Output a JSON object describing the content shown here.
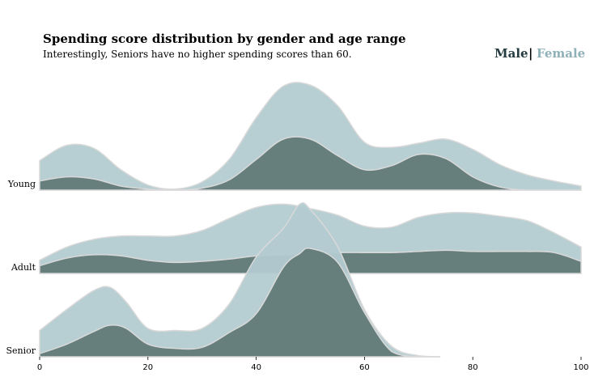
{
  "chart_data": {
    "type": "area",
    "subtype": "ridgeline-kde",
    "title": "Spending score distribution by gender and age range",
    "subtitle": "Interestingly, Seniors have no higher spending scores than 60.",
    "legend": {
      "male": "Male",
      "separator": "|",
      "female": "Female",
      "placement": "top-right"
    },
    "colors": {
      "male": "#667e7c",
      "female": "#b3cbd1",
      "outline": "#d9d9d9"
    },
    "xlim": [
      0,
      100
    ],
    "x_ticks": [
      0,
      20,
      40,
      60,
      80,
      100
    ],
    "grid": false,
    "rows": [
      {
        "name": "Young",
        "x": [
          0,
          5,
          10,
          15,
          20,
          25,
          30,
          35,
          40,
          45,
          50,
          55,
          60,
          65,
          70,
          75,
          80,
          85,
          90,
          95,
          100
        ],
        "female": [
          0.29,
          0.44,
          0.41,
          0.2,
          0.05,
          0.01,
          0.08,
          0.3,
          0.71,
          1.02,
          1.03,
          0.83,
          0.47,
          0.42,
          0.46,
          0.5,
          0.4,
          0.25,
          0.15,
          0.09,
          0.04
        ],
        "male": [
          0.09,
          0.13,
          0.11,
          0.04,
          0.01,
          0.0,
          0.02,
          0.1,
          0.3,
          0.5,
          0.5,
          0.34,
          0.2,
          0.24,
          0.35,
          0.31,
          0.13,
          0.03,
          0.0,
          0.0,
          0.0
        ]
      },
      {
        "name": "Adult",
        "x": [
          0,
          5,
          10,
          15,
          20,
          25,
          30,
          35,
          40,
          45,
          50,
          55,
          60,
          65,
          70,
          75,
          80,
          85,
          90,
          95,
          100
        ],
        "female": [
          0.12,
          0.24,
          0.31,
          0.34,
          0.34,
          0.34,
          0.39,
          0.5,
          0.6,
          0.63,
          0.59,
          0.53,
          0.43,
          0.42,
          0.51,
          0.55,
          0.55,
          0.52,
          0.48,
          0.37,
          0.24
        ],
        "male": [
          0.07,
          0.14,
          0.17,
          0.16,
          0.12,
          0.1,
          0.11,
          0.13,
          0.16,
          0.17,
          0.18,
          0.19,
          0.19,
          0.19,
          0.2,
          0.21,
          0.2,
          0.2,
          0.2,
          0.19,
          0.11
        ]
      },
      {
        "name": "Senior",
        "x": [
          0,
          5,
          10,
          13,
          16,
          20,
          25,
          30,
          35,
          40,
          45,
          48,
          50,
          55,
          60,
          65,
          70,
          74
        ],
        "female": [
          0.25,
          0.45,
          0.63,
          0.66,
          0.52,
          0.27,
          0.25,
          0.27,
          0.5,
          0.95,
          1.22,
          1.45,
          1.4,
          1.05,
          0.45,
          0.1,
          0.01,
          0.0
        ],
        "male": [
          0.03,
          0.12,
          0.24,
          0.3,
          0.27,
          0.12,
          0.08,
          0.09,
          0.23,
          0.41,
          0.85,
          0.98,
          1.03,
          0.9,
          0.42,
          0.05,
          0.0,
          0.0
        ]
      }
    ]
  }
}
